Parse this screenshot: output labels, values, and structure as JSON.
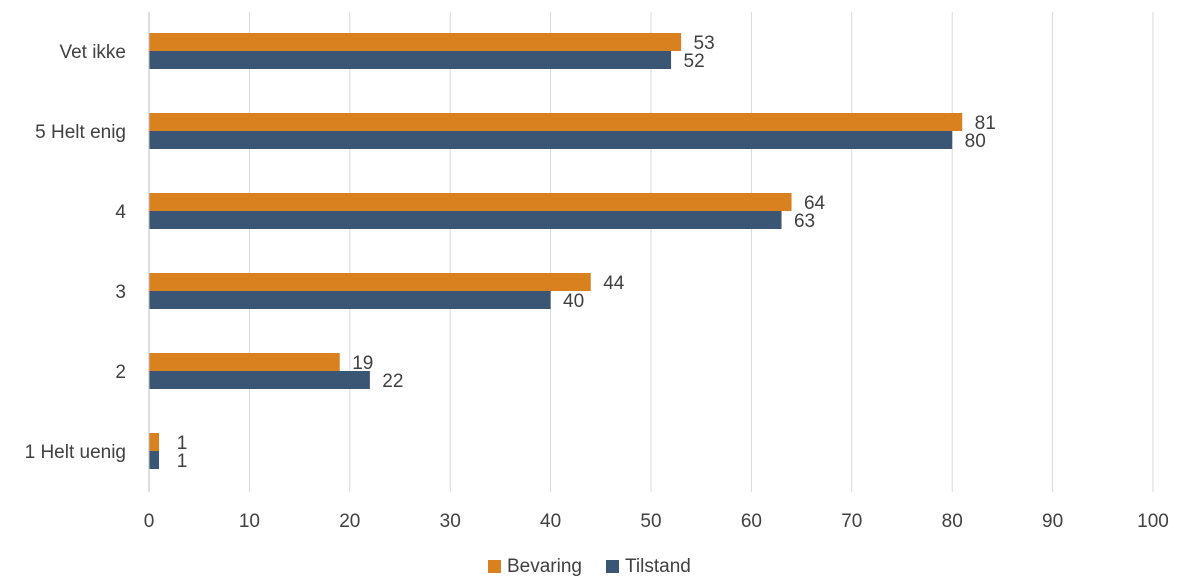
{
  "chart_data": {
    "type": "bar",
    "orientation": "horizontal",
    "categories": [
      "Vet ikke",
      "5 Helt enig",
      "4",
      "3",
      "2",
      "1 Helt uenig"
    ],
    "series": [
      {
        "name": "Bevaring",
        "values": [
          53,
          81,
          64,
          44,
          19,
          1
        ],
        "color": "#D9811E"
      },
      {
        "name": "Tilstand",
        "values": [
          52,
          80,
          63,
          40,
          22,
          1
        ],
        "color": "#3B5575"
      }
    ],
    "xlim": [
      0,
      100
    ],
    "x_ticks": [
      0,
      10,
      20,
      30,
      40,
      50,
      60,
      70,
      80,
      90,
      100
    ],
    "grid": "vertical",
    "legend": "bottom",
    "title": "",
    "xlabel": "",
    "ylabel": ""
  }
}
